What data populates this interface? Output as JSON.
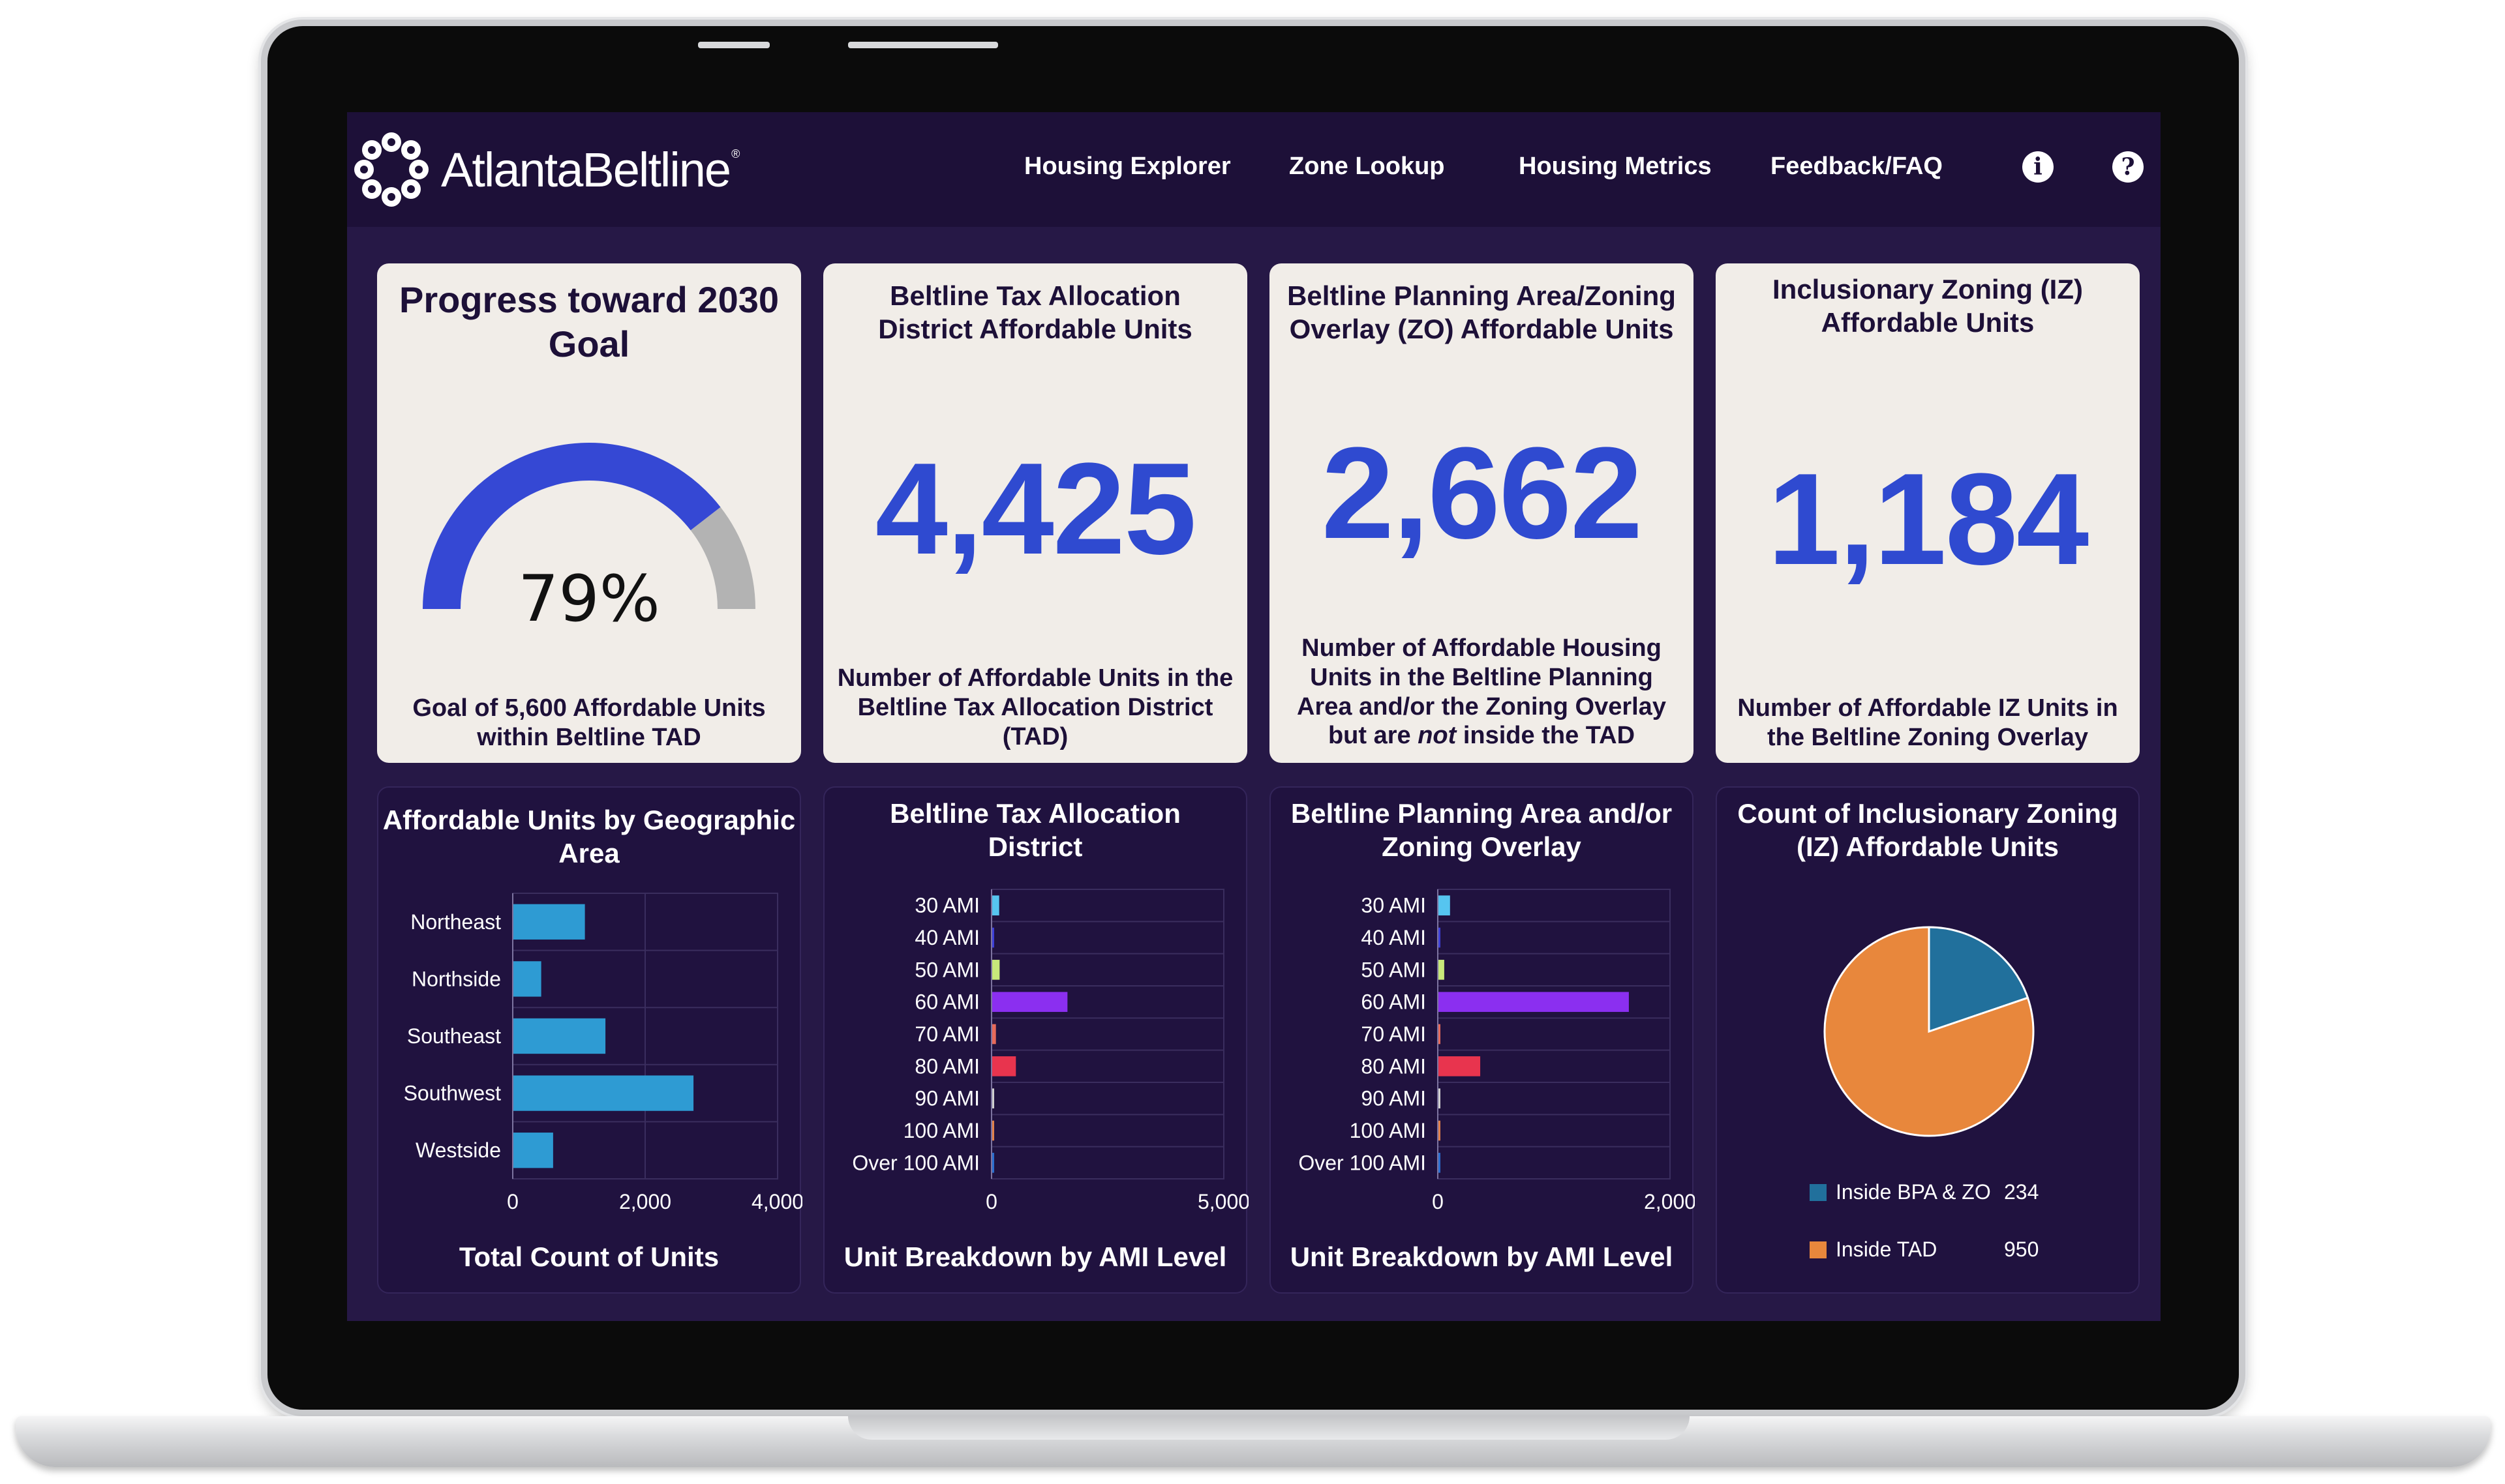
{
  "brand": {
    "logo_text": "AtlantaBeltline",
    "registered": "®"
  },
  "nav": {
    "items": [
      "Housing Explorer",
      "Zone Lookup",
      "Housing Metrics",
      "Feedback/FAQ"
    ],
    "info_icon": "i",
    "help_icon": "?"
  },
  "kpi_cards": [
    {
      "title": "Progress toward 2030 Goal",
      "gauge_value_label": "79%",
      "gauge_fraction": 0.79,
      "subtitle": "Goal of 5,600 Affordable Units within Beltline TAD"
    },
    {
      "title": "Beltline Tax Allocation District Affordable Units",
      "value": "4,425",
      "subtitle": "Number of Affordable Units in the Beltline Tax Allocation District (TAD)"
    },
    {
      "title": "Beltline Planning Area/Zoning Overlay (ZO) Affordable Units",
      "value": "2,662",
      "subtitle_pre": "Number of Affordable Housing Units in the Beltline Planning Area and/or the Zoning Overlay but are ",
      "subtitle_em": "not",
      "subtitle_post": " inside the TAD"
    },
    {
      "title": "Inclusionary Zoning (IZ) Affordable Units",
      "value": "1,184",
      "subtitle": "Number of Affordable IZ Units in the Beltline Zoning Overlay"
    }
  ],
  "colors": {
    "gauge_fill": "#3548d4",
    "gauge_track": "#b3b3b3",
    "bar_blue": "#2e9bd3",
    "ami_colors": [
      "#56c5f0",
      "#3d3fd8",
      "#c8e87a",
      "#8b2ff0",
      "#e86a5a",
      "#e8344e",
      "#d0d0d0",
      "#e2824a",
      "#2a6fd0"
    ],
    "pie_bpa": "#21709c",
    "pie_tad": "#e8873c"
  },
  "chart_data": [
    {
      "type": "bar",
      "orientation": "horizontal",
      "title": "Affordable Units by Geographic Area",
      "categories": [
        "Northeast",
        "Northside",
        "Southeast",
        "Southwest",
        "Westside"
      ],
      "values": [
        1080,
        420,
        1390,
        2720,
        600
      ],
      "xlim": [
        0,
        4000
      ],
      "xticks": [
        "0",
        "2,000",
        "4,000"
      ],
      "xlabel": "Total Count of Units",
      "grid": true
    },
    {
      "type": "bar",
      "orientation": "horizontal",
      "title": "Beltline Tax Allocation District",
      "categories": [
        "30 AMI",
        "40 AMI",
        "50 AMI",
        "60 AMI",
        "70 AMI",
        "80 AMI",
        "90 AMI",
        "100 AMI",
        "Over 100 AMI"
      ],
      "values": [
        150,
        20,
        160,
        1620,
        80,
        510,
        10,
        30,
        10
      ],
      "xlim": [
        0,
        5000
      ],
      "xticks": [
        "0",
        "5,000"
      ],
      "xlabel": "Unit Breakdown by AMI Level",
      "grid": true
    },
    {
      "type": "bar",
      "orientation": "horizontal",
      "title": "Beltline Planning Area and/or Zoning Overlay",
      "categories": [
        "30 AMI",
        "40 AMI",
        "50 AMI",
        "60 AMI",
        "70 AMI",
        "80 AMI",
        "90 AMI",
        "100 AMI",
        "Over 100 AMI"
      ],
      "values": [
        100,
        5,
        50,
        1640,
        5,
        360,
        5,
        5,
        5
      ],
      "xlim": [
        0,
        2000
      ],
      "xticks": [
        "0",
        "2,000"
      ],
      "xlabel": "Unit Breakdown by AMI Level",
      "grid": true
    },
    {
      "type": "pie",
      "title": "Count of Inclusionary Zoning (IZ) Affordable Units",
      "slices": [
        {
          "label": "Inside BPA & ZO",
          "value": 234
        },
        {
          "label": "Inside TAD",
          "value": 950
        }
      ],
      "legend_position": "bottom"
    }
  ]
}
